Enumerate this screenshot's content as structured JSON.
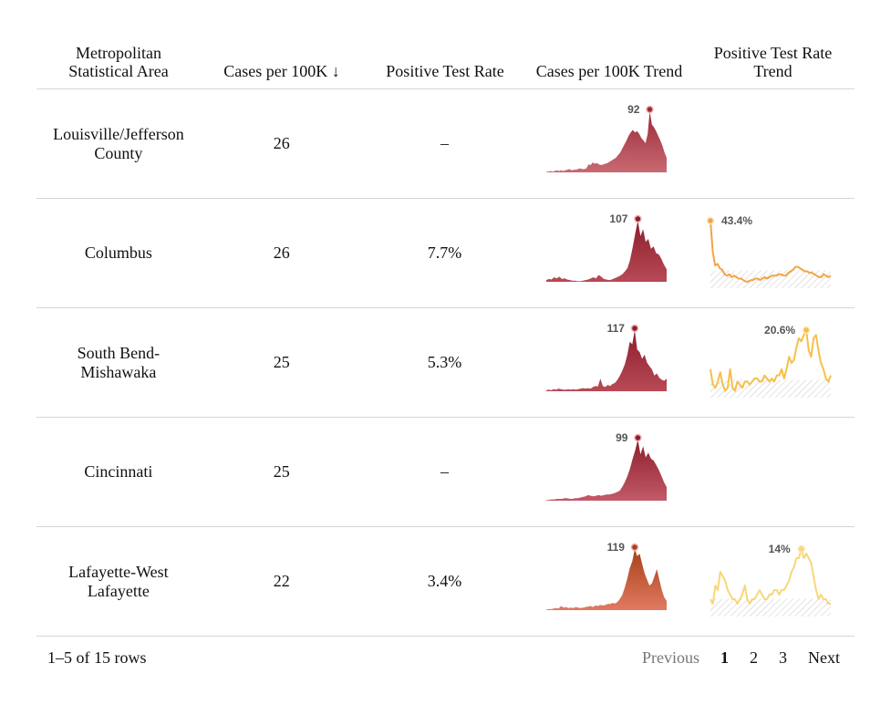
{
  "header": {
    "col_msa": "Metropolitan\nStatistical Area",
    "col_cases": "Cases per 100K ↓",
    "col_ptr": "Positive Test Rate",
    "col_cases_trend": "Cases per 100K Trend",
    "col_ptr_trend": "Positive Test Rate\nTrend"
  },
  "rows": [
    {
      "name": "Louisville/Jefferson County",
      "cases": "26",
      "ptr": "–",
      "cases_peak_label": "92",
      "ptr_peak_label": "",
      "cases_trend": [
        1,
        1,
        2,
        1,
        2,
        3,
        2,
        3,
        2,
        3,
        4,
        5,
        3,
        4,
        4,
        5,
        6,
        5,
        5,
        6,
        12,
        11,
        15,
        13,
        14,
        12,
        11,
        12,
        13,
        14,
        16,
        18,
        20,
        22,
        26,
        30,
        36,
        42,
        48,
        55,
        60,
        64,
        60,
        62,
        58,
        52,
        48,
        44,
        58,
        92,
        72,
        68,
        62,
        55,
        48,
        40,
        30,
        22
      ],
      "cases_color": "#9a2a3a",
      "cases_color_light": "#c86a72",
      "ptr_trend": null,
      "ptr_color": ""
    },
    {
      "name": "Columbus",
      "cases": "26",
      "ptr": "7.7%",
      "cases_peak_label": "107",
      "ptr_peak_label": "43.4%",
      "cases_trend": [
        3,
        5,
        4,
        8,
        6,
        9,
        5,
        6,
        4,
        3,
        2,
        2,
        1,
        1,
        2,
        3,
        4,
        6,
        8,
        6,
        12,
        9,
        5,
        4,
        3,
        4,
        6,
        8,
        10,
        13,
        18,
        24,
        38,
        60,
        85,
        107,
        80,
        92,
        70,
        75,
        58,
        62,
        50,
        48,
        40,
        30,
        22
      ],
      "cases_color": "#8c1e2c",
      "cases_color_light": "#b84a56",
      "ptr_trend": [
        43.4,
        22,
        13,
        14,
        11,
        10,
        7,
        6,
        7,
        5,
        6,
        5,
        4,
        4,
        3,
        2,
        2,
        3,
        3,
        4,
        4,
        3,
        4,
        5,
        4,
        5,
        6,
        6,
        6,
        7,
        7,
        6,
        6,
        8,
        9,
        10,
        12,
        12,
        11,
        10,
        9,
        9,
        8,
        8,
        7,
        6,
        5,
        5,
        7,
        6,
        5,
        6
      ],
      "ptr_color": "#f2a444"
    },
    {
      "name": "South Bend-Mishawaka",
      "cases": "25",
      "ptr": "5.3%",
      "cases_peak_label": "117",
      "ptr_peak_label": "20.6%",
      "cases_trend": [
        2,
        3,
        2,
        4,
        3,
        5,
        4,
        3,
        3,
        4,
        3,
        4,
        3,
        4,
        5,
        6,
        5,
        6,
        5,
        8,
        10,
        9,
        24,
        10,
        8,
        12,
        10,
        14,
        16,
        22,
        30,
        40,
        52,
        70,
        95,
        90,
        117,
        80,
        75,
        62,
        70,
        55,
        48,
        42,
        30,
        34,
        26,
        22,
        20,
        24
      ],
      "cases_color": "#8c1e2c",
      "cases_color_light": "#b84a56",
      "ptr_trend": [
        8,
        3,
        2,
        4,
        7,
        3,
        1,
        2,
        8,
        2,
        1,
        4,
        3,
        2,
        4,
        4,
        3,
        4,
        5,
        5,
        4,
        4,
        6,
        5,
        4,
        5,
        4,
        6,
        6,
        8,
        5,
        8,
        12,
        10,
        11,
        15,
        18,
        17,
        19,
        20.6,
        14,
        12,
        18,
        19,
        14,
        10,
        8,
        5,
        4,
        6
      ],
      "ptr_color": "#f5c04a"
    },
    {
      "name": "Cincinnati",
      "cases": "25",
      "ptr": "–",
      "cases_peak_label": "99",
      "ptr_peak_label": "",
      "cases_trend": [
        1,
        1,
        2,
        2,
        3,
        3,
        3,
        4,
        4,
        3,
        3,
        4,
        4,
        5,
        6,
        7,
        9,
        8,
        7,
        8,
        9,
        8,
        9,
        10,
        10,
        11,
        12,
        14,
        16,
        22,
        30,
        40,
        52,
        68,
        82,
        99,
        75,
        88,
        70,
        78,
        68,
        65,
        58,
        50,
        40,
        30,
        22
      ],
      "cases_color": "#8c1e2c",
      "cases_color_light": "#c25a68",
      "ptr_trend": null,
      "ptr_color": ""
    },
    {
      "name": "Lafayette-West Lafayette",
      "cases": "22",
      "ptr": "3.4%",
      "cases_peak_label": "119",
      "ptr_peak_label": "14%",
      "cases_trend": [
        1,
        2,
        2,
        3,
        4,
        3,
        8,
        5,
        6,
        4,
        5,
        4,
        6,
        5,
        4,
        5,
        6,
        7,
        8,
        6,
        9,
        8,
        10,
        9,
        10,
        12,
        12,
        14,
        13,
        16,
        22,
        30,
        45,
        62,
        82,
        95,
        119,
        105,
        110,
        90,
        72,
        60,
        48,
        52,
        65,
        80,
        60,
        40,
        25,
        18
      ],
      "cases_color": "#a8401a",
      "cases_color_light": "#e07a60",
      "ptr_trend": [
        3,
        2,
        6,
        5,
        9,
        8,
        7,
        5,
        4,
        3,
        3,
        2,
        3,
        4,
        6,
        3,
        2,
        3,
        3,
        4,
        5,
        4,
        3,
        3,
        4,
        4,
        5,
        5,
        4,
        5,
        5,
        6,
        7,
        9,
        10,
        12,
        12,
        14,
        12,
        13,
        12,
        11,
        8,
        5,
        3,
        4,
        3,
        3,
        2,
        2
      ],
      "ptr_color": "#f7d778"
    }
  ],
  "footer": {
    "row_count": "1–5 of 15 rows",
    "previous": "Previous",
    "pages": [
      "1",
      "2",
      "3"
    ],
    "next": "Next"
  }
}
